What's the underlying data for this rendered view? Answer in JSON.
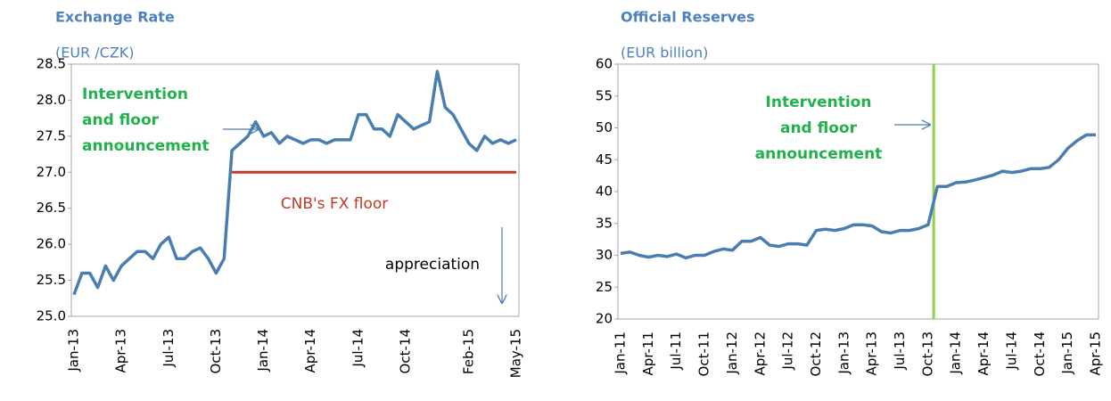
{
  "chart_data": [
    {
      "type": "line",
      "title": "Exchange Rate",
      "subtitle": "(EUR /CZK)",
      "categories": [
        "Jan-13",
        null,
        null,
        null,
        null,
        null,
        "Apr-13",
        null,
        null,
        null,
        null,
        null,
        "Jul-13",
        null,
        null,
        null,
        null,
        null,
        "Oct-13",
        null,
        null,
        null,
        null,
        null,
        "Jan-14",
        null,
        null,
        null,
        null,
        null,
        "Apr-14",
        null,
        null,
        null,
        null,
        null,
        "Jul-14",
        null,
        null,
        null,
        null,
        null,
        "Oct-14",
        null,
        null,
        null,
        null,
        null,
        null,
        null,
        "Feb-15",
        null,
        null,
        null,
        null,
        null,
        "May-15"
      ],
      "series": [
        {
          "color": "#4a7eb0",
          "values": [
            25.3,
            25.6,
            25.6,
            25.4,
            25.7,
            25.5,
            25.7,
            25.8,
            25.9,
            25.9,
            25.8,
            26.0,
            26.1,
            25.8,
            25.8,
            25.9,
            25.95,
            25.8,
            25.6,
            25.8,
            27.3,
            27.4,
            27.5,
            27.7,
            27.5,
            27.55,
            27.4,
            27.5,
            27.45,
            27.4,
            27.45,
            27.45,
            27.4,
            27.45,
            27.45,
            27.45,
            27.8,
            27.8,
            27.6,
            27.6,
            27.5,
            27.8,
            27.7,
            27.6,
            27.65,
            27.7,
            28.4,
            27.9,
            27.8,
            27.6,
            27.4,
            27.3,
            27.5,
            27.4,
            27.45,
            27.4,
            27.45
          ]
        },
        {
          "color": "#c0392b",
          "values": [
            null,
            null,
            null,
            null,
            null,
            null,
            null,
            null,
            null,
            null,
            null,
            null,
            null,
            null,
            null,
            null,
            null,
            null,
            null,
            null,
            27,
            27,
            27,
            27,
            27,
            27,
            27,
            27,
            27,
            27,
            27,
            27,
            27,
            27,
            27,
            27,
            27,
            27,
            27,
            27,
            27,
            27,
            27,
            27,
            27,
            27,
            27,
            27,
            27,
            27,
            27,
            27,
            27,
            27,
            27,
            27,
            27
          ]
        }
      ],
      "ylim": [
        25.0,
        28.5
      ],
      "yticks": [
        {
          "value": 25,
          "label": "25.0"
        },
        25.5,
        {
          "value": 26,
          "label": "26.0"
        },
        26.5,
        {
          "value": 27,
          "label": "27.0"
        },
        27.5,
        {
          "value": 28,
          "label": "28.0"
        },
        28.5
      ],
      "annotations": [
        {
          "lines": [
            "Intervention",
            "and floor",
            "announcement"
          ],
          "color": "#22b14c"
        },
        {
          "lines": [
            "CNB's FX floor"
          ],
          "color": "#c0392b"
        },
        {
          "lines": [
            "appreciation"
          ],
          "color": "#000000"
        }
      ]
    },
    {
      "type": "line",
      "title": "Official Reserves",
      "subtitle": "(EUR billion)",
      "categories": [
        "Jan-11",
        null,
        null,
        "Apr-11",
        null,
        null,
        "Jul-11",
        null,
        null,
        "Oct-11",
        null,
        null,
        "Jan-12",
        null,
        null,
        "Apr-12",
        null,
        null,
        "Jul-12",
        null,
        null,
        "Oct-12",
        null,
        null,
        "Jan-13",
        null,
        null,
        "Apr-13",
        null,
        null,
        "Jul-13",
        null,
        null,
        "Oct-13",
        null,
        null,
        "Jan-14",
        null,
        null,
        "Apr-14",
        null,
        null,
        "Jul-14",
        null,
        null,
        "Oct-14",
        null,
        null,
        "Jan-15",
        null,
        null,
        "Apr-15"
      ],
      "series": [
        {
          "color": "#4a7eb0",
          "values": [
            30.3,
            30.5,
            30.0,
            29.7,
            30.0,
            29.8,
            30.2,
            29.6,
            30.0,
            30.0,
            30.6,
            31.0,
            30.8,
            32.2,
            32.2,
            32.8,
            31.6,
            31.4,
            31.8,
            31.8,
            31.6,
            33.9,
            34.1,
            33.9,
            34.2,
            34.8,
            34.8,
            34.6,
            33.7,
            33.5,
            33.9,
            33.9,
            34.2,
            34.8,
            40.8,
            40.8,
            41.4,
            41.5,
            41.8,
            42.2,
            42.6,
            43.2,
            43.0,
            43.2,
            43.6,
            43.6,
            43.8,
            45.0,
            46.8,
            48.0,
            48.9,
            48.9
          ]
        }
      ],
      "ylim": [
        20,
        60
      ],
      "yticks": [
        20,
        25,
        30,
        35,
        40,
        45,
        50,
        55,
        60
      ],
      "vline_color": "#92d050",
      "annotations": [
        {
          "lines": [
            "Intervention",
            "and floor",
            "announcement"
          ],
          "color": "#22b14c"
        }
      ]
    }
  ]
}
